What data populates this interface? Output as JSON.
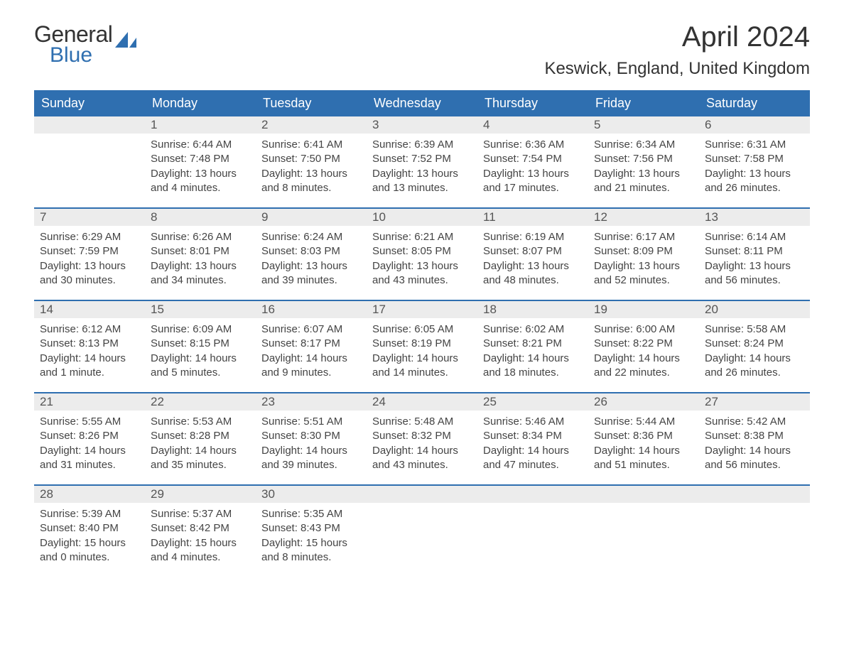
{
  "brand": {
    "g": "General",
    "b": "Blue"
  },
  "title": "April 2024",
  "location": "Keswick, England, United Kingdom",
  "colors": {
    "header_bg": "#2f6fb0",
    "header_text": "#ffffff",
    "daynum_bg": "#ececec",
    "daynum_text": "#555555",
    "body_text": "#444444",
    "row_divider": "#2f6fb0",
    "page_bg": "#ffffff",
    "logo_general": "#333333",
    "logo_blue": "#2f6fb0",
    "title_color": "#333333"
  },
  "fonts": {
    "family": "Arial",
    "title_size_pt": 30,
    "location_size_pt": 18,
    "header_size_pt": 14,
    "daynum_size_pt": 13,
    "body_size_pt": 11
  },
  "weekdays": [
    "Sunday",
    "Monday",
    "Tuesday",
    "Wednesday",
    "Thursday",
    "Friday",
    "Saturday"
  ],
  "weeks": [
    [
      {
        "n": "",
        "r": "",
        "s": "",
        "d": ""
      },
      {
        "n": "1",
        "r": "Sunrise: 6:44 AM",
        "s": "Sunset: 7:48 PM",
        "d": "Daylight: 13 hours and 4 minutes."
      },
      {
        "n": "2",
        "r": "Sunrise: 6:41 AM",
        "s": "Sunset: 7:50 PM",
        "d": "Daylight: 13 hours and 8 minutes."
      },
      {
        "n": "3",
        "r": "Sunrise: 6:39 AM",
        "s": "Sunset: 7:52 PM",
        "d": "Daylight: 13 hours and 13 minutes."
      },
      {
        "n": "4",
        "r": "Sunrise: 6:36 AM",
        "s": "Sunset: 7:54 PM",
        "d": "Daylight: 13 hours and 17 minutes."
      },
      {
        "n": "5",
        "r": "Sunrise: 6:34 AM",
        "s": "Sunset: 7:56 PM",
        "d": "Daylight: 13 hours and 21 minutes."
      },
      {
        "n": "6",
        "r": "Sunrise: 6:31 AM",
        "s": "Sunset: 7:58 PM",
        "d": "Daylight: 13 hours and 26 minutes."
      }
    ],
    [
      {
        "n": "7",
        "r": "Sunrise: 6:29 AM",
        "s": "Sunset: 7:59 PM",
        "d": "Daylight: 13 hours and 30 minutes."
      },
      {
        "n": "8",
        "r": "Sunrise: 6:26 AM",
        "s": "Sunset: 8:01 PM",
        "d": "Daylight: 13 hours and 34 minutes."
      },
      {
        "n": "9",
        "r": "Sunrise: 6:24 AM",
        "s": "Sunset: 8:03 PM",
        "d": "Daylight: 13 hours and 39 minutes."
      },
      {
        "n": "10",
        "r": "Sunrise: 6:21 AM",
        "s": "Sunset: 8:05 PM",
        "d": "Daylight: 13 hours and 43 minutes."
      },
      {
        "n": "11",
        "r": "Sunrise: 6:19 AM",
        "s": "Sunset: 8:07 PM",
        "d": "Daylight: 13 hours and 48 minutes."
      },
      {
        "n": "12",
        "r": "Sunrise: 6:17 AM",
        "s": "Sunset: 8:09 PM",
        "d": "Daylight: 13 hours and 52 minutes."
      },
      {
        "n": "13",
        "r": "Sunrise: 6:14 AM",
        "s": "Sunset: 8:11 PM",
        "d": "Daylight: 13 hours and 56 minutes."
      }
    ],
    [
      {
        "n": "14",
        "r": "Sunrise: 6:12 AM",
        "s": "Sunset: 8:13 PM",
        "d": "Daylight: 14 hours and 1 minute."
      },
      {
        "n": "15",
        "r": "Sunrise: 6:09 AM",
        "s": "Sunset: 8:15 PM",
        "d": "Daylight: 14 hours and 5 minutes."
      },
      {
        "n": "16",
        "r": "Sunrise: 6:07 AM",
        "s": "Sunset: 8:17 PM",
        "d": "Daylight: 14 hours and 9 minutes."
      },
      {
        "n": "17",
        "r": "Sunrise: 6:05 AM",
        "s": "Sunset: 8:19 PM",
        "d": "Daylight: 14 hours and 14 minutes."
      },
      {
        "n": "18",
        "r": "Sunrise: 6:02 AM",
        "s": "Sunset: 8:21 PM",
        "d": "Daylight: 14 hours and 18 minutes."
      },
      {
        "n": "19",
        "r": "Sunrise: 6:00 AM",
        "s": "Sunset: 8:22 PM",
        "d": "Daylight: 14 hours and 22 minutes."
      },
      {
        "n": "20",
        "r": "Sunrise: 5:58 AM",
        "s": "Sunset: 8:24 PM",
        "d": "Daylight: 14 hours and 26 minutes."
      }
    ],
    [
      {
        "n": "21",
        "r": "Sunrise: 5:55 AM",
        "s": "Sunset: 8:26 PM",
        "d": "Daylight: 14 hours and 31 minutes."
      },
      {
        "n": "22",
        "r": "Sunrise: 5:53 AM",
        "s": "Sunset: 8:28 PM",
        "d": "Daylight: 14 hours and 35 minutes."
      },
      {
        "n": "23",
        "r": "Sunrise: 5:51 AM",
        "s": "Sunset: 8:30 PM",
        "d": "Daylight: 14 hours and 39 minutes."
      },
      {
        "n": "24",
        "r": "Sunrise: 5:48 AM",
        "s": "Sunset: 8:32 PM",
        "d": "Daylight: 14 hours and 43 minutes."
      },
      {
        "n": "25",
        "r": "Sunrise: 5:46 AM",
        "s": "Sunset: 8:34 PM",
        "d": "Daylight: 14 hours and 47 minutes."
      },
      {
        "n": "26",
        "r": "Sunrise: 5:44 AM",
        "s": "Sunset: 8:36 PM",
        "d": "Daylight: 14 hours and 51 minutes."
      },
      {
        "n": "27",
        "r": "Sunrise: 5:42 AM",
        "s": "Sunset: 8:38 PM",
        "d": "Daylight: 14 hours and 56 minutes."
      }
    ],
    [
      {
        "n": "28",
        "r": "Sunrise: 5:39 AM",
        "s": "Sunset: 8:40 PM",
        "d": "Daylight: 15 hours and 0 minutes."
      },
      {
        "n": "29",
        "r": "Sunrise: 5:37 AM",
        "s": "Sunset: 8:42 PM",
        "d": "Daylight: 15 hours and 4 minutes."
      },
      {
        "n": "30",
        "r": "Sunrise: 5:35 AM",
        "s": "Sunset: 8:43 PM",
        "d": "Daylight: 15 hours and 8 minutes."
      },
      {
        "n": "",
        "r": "",
        "s": "",
        "d": ""
      },
      {
        "n": "",
        "r": "",
        "s": "",
        "d": ""
      },
      {
        "n": "",
        "r": "",
        "s": "",
        "d": ""
      },
      {
        "n": "",
        "r": "",
        "s": "",
        "d": ""
      }
    ]
  ]
}
